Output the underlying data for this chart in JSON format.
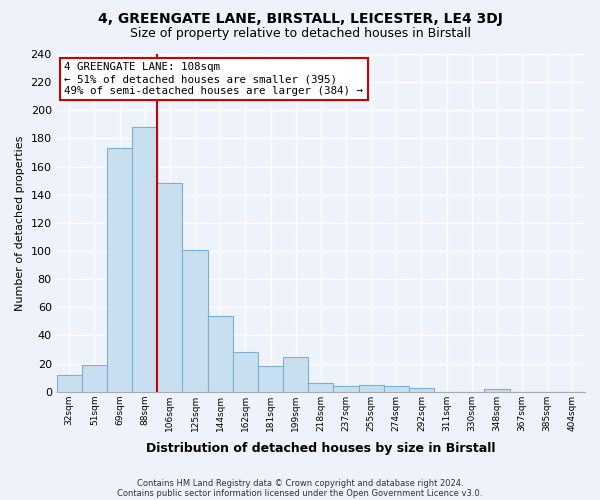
{
  "title1": "4, GREENGATE LANE, BIRSTALL, LEICESTER, LE4 3DJ",
  "title2": "Size of property relative to detached houses in Birstall",
  "xlabel": "Distribution of detached houses by size in Birstall",
  "ylabel": "Number of detached properties",
  "bin_labels": [
    "32sqm",
    "51sqm",
    "69sqm",
    "88sqm",
    "106sqm",
    "125sqm",
    "144sqm",
    "162sqm",
    "181sqm",
    "199sqm",
    "218sqm",
    "237sqm",
    "255sqm",
    "274sqm",
    "292sqm",
    "311sqm",
    "330sqm",
    "348sqm",
    "367sqm",
    "385sqm",
    "404sqm"
  ],
  "bar_heights": [
    12,
    19,
    173,
    188,
    148,
    101,
    54,
    28,
    18,
    25,
    6,
    4,
    5,
    4,
    3,
    0,
    0,
    2,
    0,
    0,
    0
  ],
  "bar_color": "#c8dff0",
  "bar_edge_color": "#7ab0d4",
  "vline_x": 4,
  "vline_color": "#cc0000",
  "annotation_title": "4 GREENGATE LANE: 108sqm",
  "annotation_line1": "← 51% of detached houses are smaller (395)",
  "annotation_line2": "49% of semi-detached houses are larger (384) →",
  "annotation_box_color": "#ffffff",
  "annotation_box_edge": "#cc0000",
  "ylim": [
    0,
    240
  ],
  "yticks": [
    0,
    20,
    40,
    60,
    80,
    100,
    120,
    140,
    160,
    180,
    200,
    220,
    240
  ],
  "footnote1": "Contains HM Land Registry data © Crown copyright and database right 2024.",
  "footnote2": "Contains public sector information licensed under the Open Government Licence v3.0.",
  "bg_color": "#eef2fb",
  "grid_color": "#ffffff",
  "title1_fontsize": 10,
  "title2_fontsize": 9,
  "ylabel_fontsize": 8,
  "xlabel_fontsize": 9
}
